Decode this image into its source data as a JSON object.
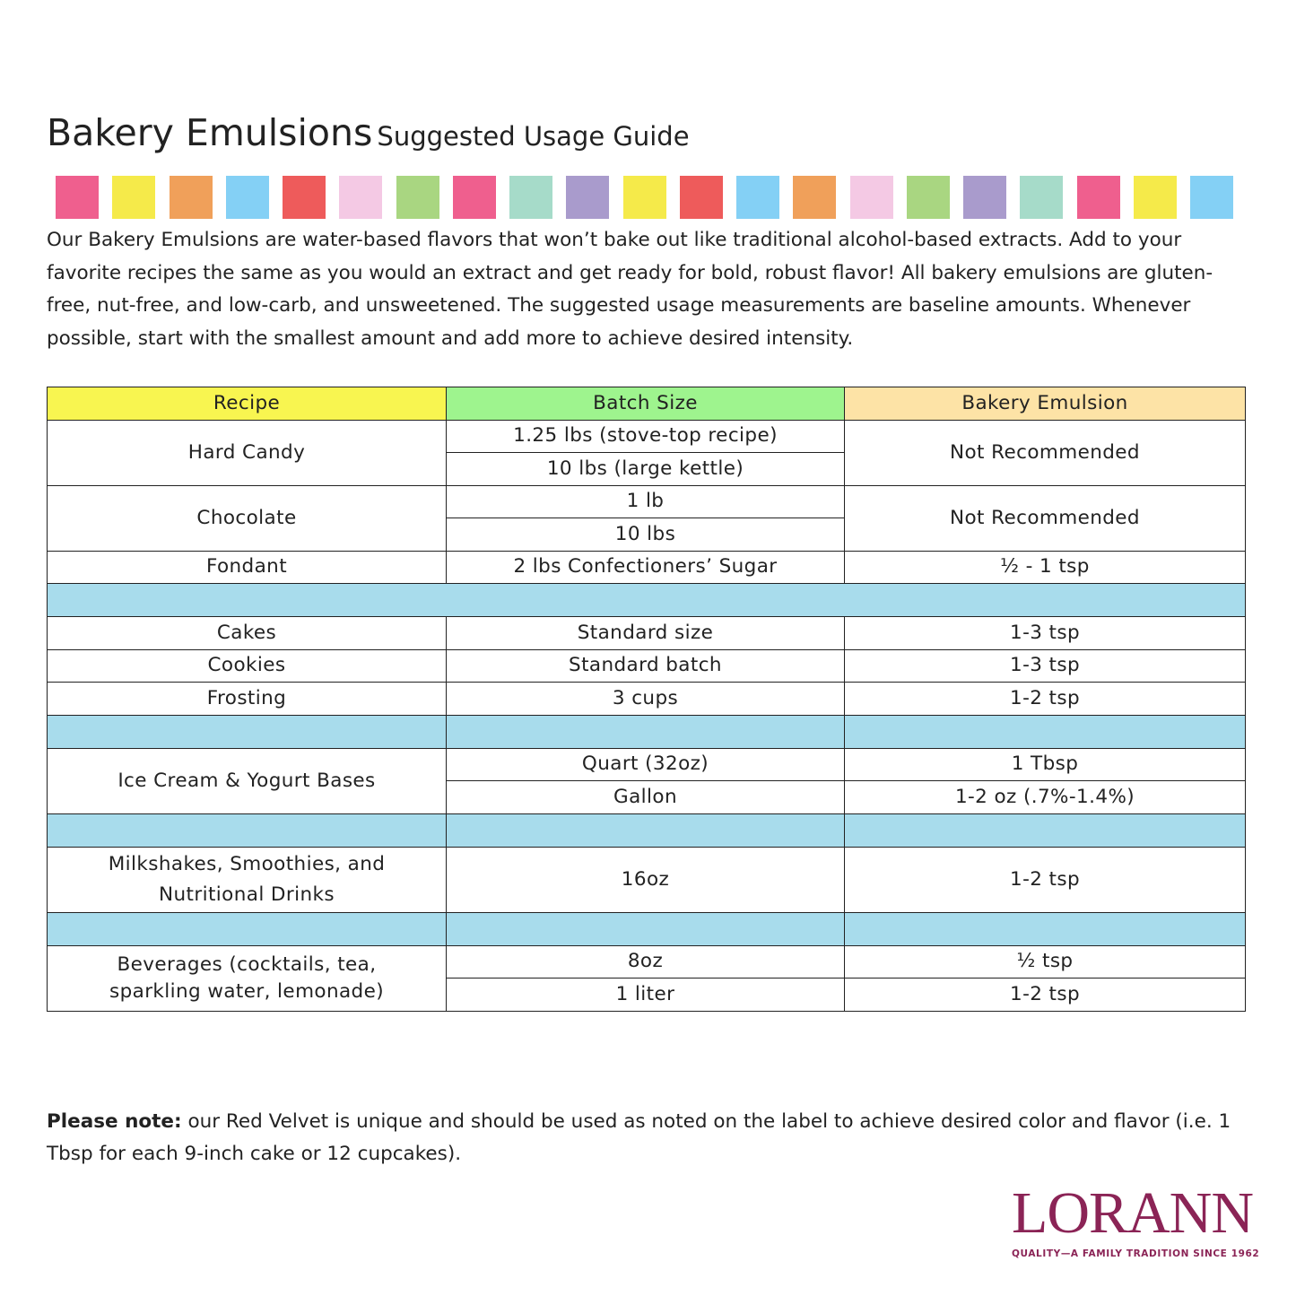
{
  "header": {
    "title": "Bakery Emulsions",
    "subtitle": "Suggested Usage Guide"
  },
  "intro": "Our Bakery Emulsions are water-based flavors that won’t bake out like traditional alcohol-based extracts. Add to your favorite recipes the same as you would an extract and get ready for bold, robust flavor! All bakery emulsions are gluten-free, nut-free, and low-carb, and unsweetened. The suggested usage measurements are baseline amounts. Whenever possible, start with the smallest amount and add more to achieve desired intensity.",
  "table": {
    "columns": [
      "Recipe",
      "Batch Size",
      "Bakery Emulsion"
    ],
    "rows": [
      [
        "Hard Candy",
        "1.25 lbs (stove-top recipe)",
        "Not Recommended"
      ],
      [
        "10 lbs (large kettle)"
      ],
      [
        "Chocolate",
        "1 lb",
        "Not Recommended"
      ],
      [
        "10 lbs"
      ],
      [
        "Fondant",
        "2 lbs Confectioners’ Sugar",
        "½ - 1 tsp"
      ],
      [
        "Cakes",
        "Standard size",
        "1-3 tsp"
      ],
      [
        "Cookies",
        "Standard batch",
        "1-3 tsp"
      ],
      [
        "Frosting",
        "3 cups",
        "1-2 tsp"
      ],
      [
        "Ice Cream & Yogurt Bases",
        "Quart (32oz)",
        "1 Tbsp"
      ],
      [
        "Gallon",
        "1-2 oz (.7%-1.4%)"
      ],
      [
        "Milkshakes, Smoothies, and Nutritional Drinks",
        "16oz",
        "1-2 tsp"
      ],
      [
        "Beverages (cocktails, tea, sparkling water, lemonade)",
        "8oz",
        "½ tsp"
      ],
      [
        "1 liter",
        "1-2 tsp"
      ]
    ]
  },
  "note": {
    "label": "Please note:",
    "text": "our Red Velvet is unique and should be used as noted on the label to achieve desired color and flavor (i.e. 1 Tbsp for each 9-inch cake or 12 cupcakes)."
  },
  "logo": {
    "name": "LORANN",
    "tagline": "QUALITY—A FAMILY TRADITION SINCE 1962"
  }
}
